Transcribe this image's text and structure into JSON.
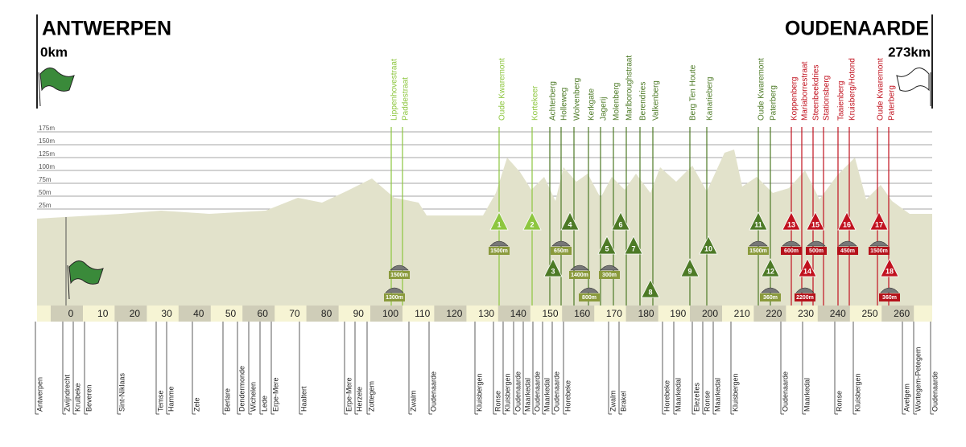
{
  "header": {
    "start": {
      "name": "ANTWERPEN",
      "distance": "0km"
    },
    "finish": {
      "name": "OUDENAARDE",
      "distance": "273km"
    }
  },
  "altitude_ticks": [
    "175m",
    "150m",
    "125m",
    "100m",
    "75m",
    "50m",
    "25m"
  ],
  "km_ticks": [
    0,
    10,
    20,
    30,
    40,
    50,
    60,
    70,
    80,
    90,
    100,
    110,
    120,
    130,
    140,
    150,
    160,
    170,
    180,
    190,
    200,
    210,
    220,
    230,
    240,
    250,
    260
  ],
  "climbs": [
    "Lippenhovestraat",
    "Paddestraat",
    "Oude Kwaremont",
    "Kortekeer",
    "Achterberg",
    "Holleweg",
    "Wolvenberg",
    "Kerkgate",
    "Jagerij",
    "Molenberg",
    "Marlboroughstraat",
    "Berendries",
    "Valkenberg",
    "Berg Ten Houte",
    "Kanarieberg",
    "Oude Kwaremont",
    "Paterberg",
    "Koppenberg",
    "Mariaborrestraat",
    "Steenbeekdries",
    "Stationsberg",
    "Taaienberg",
    "Kruisberg/Hotond",
    "Oude Kwaremont",
    "Paterberg"
  ],
  "climb_numbers": [
    1,
    2,
    3,
    4,
    5,
    6,
    7,
    8,
    9,
    10,
    11,
    12,
    13,
    14,
    15,
    16,
    17,
    18
  ],
  "cobbles": [
    "1300m",
    "1500m",
    "1500m",
    "650m",
    "1400m",
    "800m",
    "300m",
    "1500m",
    "360m",
    "600m",
    "2200m",
    "500m",
    "450m",
    "1500m",
    "360m"
  ],
  "towns": [
    "Antwerpen",
    "Zwijndrecht",
    "Kruibeke",
    "Beveren",
    "Sint-Niklaas",
    "Temse",
    "Hamme",
    "Zele",
    "Berlare",
    "Dendermonde",
    "Wichelen",
    "Lede",
    "Erpe-Mere",
    "Haaltert",
    "Erpe-Mere",
    "Herzele",
    "Zottegem",
    "Zwalm",
    "Oudenaarde",
    "Kluisbergen",
    "Ronse",
    "Kluisbergen",
    "Oudenaarde",
    "Maarkedal",
    "Oudenaarde",
    "Maarkedal",
    "Oudenaarde",
    "Horebeke",
    "Zwalm",
    "Brakel",
    "Horebeke",
    "Maarkedal",
    "Elezelles",
    "Ronse",
    "Maarkedal",
    "Kluisbergen",
    "Oudenaarde",
    "Maarkedal",
    "Ronse",
    "Kluisbergen",
    "Avelgem",
    "Wortegem-Petegem",
    "Oudenaarde"
  ]
}
